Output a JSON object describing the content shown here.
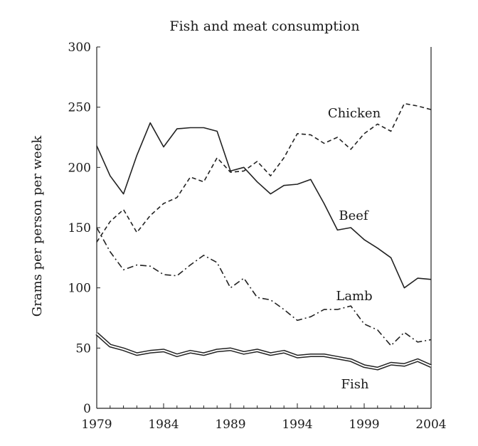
{
  "chart_data": {
    "type": "line",
    "title": "Fish and meat consumption",
    "xlabel": "",
    "ylabel": "Grams per person per week",
    "xlim": [
      1979,
      2004
    ],
    "ylim": [
      0,
      300
    ],
    "x_ticks": [
      "1979",
      "1984",
      "1989",
      "1994",
      "1999",
      "2004"
    ],
    "y_ticks": [
      "0",
      "50",
      "100",
      "150",
      "200",
      "250",
      "300"
    ],
    "grid": false,
    "legend": "none",
    "x": [
      1979,
      1980,
      1981,
      1982,
      1983,
      1984,
      1985,
      1986,
      1987,
      1988,
      1989,
      1990,
      1991,
      1992,
      1993,
      1994,
      1995,
      1996,
      1997,
      1998,
      1999,
      2000,
      2001,
      2002,
      2003,
      2004
    ],
    "series": [
      {
        "name": "Chicken",
        "style": "dashed",
        "values": [
          138,
          155,
          165,
          146,
          160,
          170,
          175,
          192,
          188,
          208,
          196,
          197,
          205,
          193,
          208,
          228,
          227,
          220,
          225,
          215,
          228,
          236,
          230,
          253,
          251,
          248
        ]
      },
      {
        "name": "Beef",
        "style": "solid",
        "values": [
          218,
          193,
          178,
          210,
          237,
          217,
          232,
          233,
          233,
          230,
          197,
          200,
          188,
          178,
          185,
          186,
          190,
          170,
          148,
          150,
          140,
          133,
          125,
          100,
          108,
          107
        ]
      },
      {
        "name": "Lamb",
        "style": "dash-dot",
        "values": [
          150,
          130,
          115,
          119,
          118,
          111,
          110,
          119,
          127,
          121,
          100,
          108,
          92,
          90,
          82,
          73,
          76,
          82,
          82,
          85,
          70,
          65,
          52,
          63,
          55,
          57
        ]
      },
      {
        "name": "Fish",
        "style": "double",
        "values": [
          62,
          52,
          49,
          45,
          47,
          48,
          44,
          47,
          45,
          48,
          49,
          46,
          48,
          45,
          47,
          43,
          44,
          44,
          42,
          40,
          35,
          33,
          37,
          36,
          40,
          35
        ]
      }
    ]
  }
}
